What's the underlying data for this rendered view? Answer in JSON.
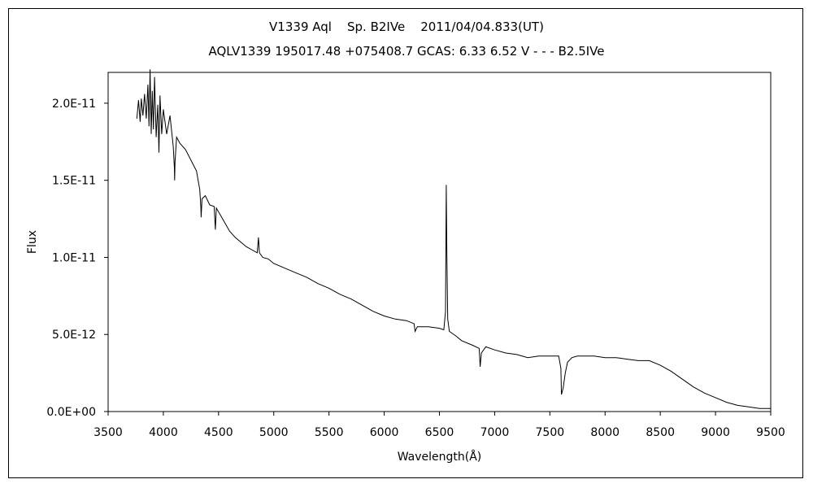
{
  "chart_data": {
    "type": "line",
    "title": "V1339 Aql    Sp. B2IVe    2011/04/04.833(UT)",
    "subtitle": "AQLV1339 195017.48 +075408.7 GCAS: 6.33 6.52 V - - - B2.5IVe",
    "xlabel": "Wavelength(Å)",
    "ylabel": "Flux",
    "xlim": [
      3500,
      9500
    ],
    "ylim": [
      0,
      2.2e-11
    ],
    "grid": false,
    "x_ticks": [
      3500,
      4000,
      4500,
      5000,
      5500,
      6000,
      6500,
      7000,
      7500,
      8000,
      8500,
      9000,
      9500
    ],
    "x_tick_labels": [
      "3500",
      "4000",
      "4500",
      "5000",
      "5500",
      "6000",
      "6500",
      "7000",
      "7500",
      "8000",
      "8500",
      "9000",
      "9500"
    ],
    "y_ticks": [
      0,
      5e-12,
      1e-11,
      1.5e-11,
      2e-11
    ],
    "y_tick_labels": [
      "0.0E+00",
      "5.0E-12",
      "1.0E-11",
      "1.5E-11",
      "2.0E-11"
    ],
    "series": [
      {
        "color": "#000000",
        "x": [
          3760,
          3775,
          3790,
          3800,
          3815,
          3830,
          3845,
          3860,
          3870,
          3880,
          3890,
          3900,
          3910,
          3920,
          3935,
          3950,
          3960,
          3970,
          3985,
          4000,
          4030,
          4060,
          4090,
          4100,
          4102,
          4106,
          4120,
          4150,
          4200,
          4250,
          4300,
          4330,
          4340,
          4342,
          4350,
          4380,
          4420,
          4460,
          4471,
          4480,
          4520,
          4560,
          4600,
          4650,
          4700,
          4750,
          4800,
          4850,
          4861,
          4870,
          4900,
          4950,
          5000,
          5100,
          5200,
          5300,
          5400,
          5500,
          5600,
          5700,
          5800,
          5900,
          6000,
          6100,
          6200,
          6270,
          6280,
          6300,
          6400,
          6500,
          6540,
          6555,
          6562,
          6568,
          6575,
          6590,
          6650,
          6700,
          6800,
          6860,
          6869,
          6880,
          6920,
          7000,
          7100,
          7200,
          7300,
          7400,
          7500,
          7580,
          7600,
          7605,
          7620,
          7640,
          7660,
          7700,
          7750,
          7800,
          7900,
          8000,
          8100,
          8200,
          8300,
          8400,
          8500,
          8600,
          8700,
          8800,
          8900,
          9000,
          9100,
          9200,
          9300,
          9400,
          9500
        ],
        "y": [
          1.9e-11,
          2.02e-11,
          1.88e-11,
          2.03e-11,
          1.92e-11,
          2.06e-11,
          1.9e-11,
          2.12e-11,
          1.85e-11,
          2.22e-11,
          1.8e-11,
          2.08e-11,
          1.83e-11,
          2.17e-11,
          1.78e-11,
          1.99e-11,
          1.68e-11,
          2.05e-11,
          1.8e-11,
          1.96e-11,
          1.8e-11,
          1.92e-11,
          1.72e-11,
          1.58e-11,
          1.5e-11,
          1.62e-11,
          1.78e-11,
          1.74e-11,
          1.7e-11,
          1.63e-11,
          1.56e-11,
          1.44e-11,
          1.32e-11,
          1.26e-11,
          1.38e-11,
          1.4e-11,
          1.34e-11,
          1.33e-11,
          1.18e-11,
          1.32e-11,
          1.27e-11,
          1.22e-11,
          1.17e-11,
          1.13e-11,
          1.1e-11,
          1.07e-11,
          1.05e-11,
          1.03e-11,
          1.13e-11,
          1.03e-11,
          1e-11,
          9.9e-12,
          9.6e-12,
          9.3e-12,
          9e-12,
          8.7e-12,
          8.3e-12,
          8e-12,
          7.6e-12,
          7.3e-12,
          6.9e-12,
          6.5e-12,
          6.2e-12,
          6e-12,
          5.9e-12,
          5.7e-12,
          5.2e-12,
          5.5e-12,
          5.5e-12,
          5.4e-12,
          5.3e-12,
          6.5e-12,
          1.47e-11,
          1e-11,
          6e-12,
          5.2e-12,
          4.9e-12,
          4.6e-12,
          4.3e-12,
          4.1e-12,
          2.9e-12,
          3.8e-12,
          4.2e-12,
          4e-12,
          3.8e-12,
          3.7e-12,
          3.5e-12,
          3.6e-12,
          3.6e-12,
          3.6e-12,
          2.8e-12,
          1.1e-12,
          1.5e-12,
          2.5e-12,
          3.2e-12,
          3.5e-12,
          3.6e-12,
          3.6e-12,
          3.6e-12,
          3.5e-12,
          3.5e-12,
          3.4e-12,
          3.3e-12,
          3.3e-12,
          3e-12,
          2.6e-12,
          2.1e-12,
          1.6e-12,
          1.2e-12,
          9e-13,
          6e-13,
          4e-13,
          3e-13,
          2e-13,
          2e-13
        ]
      }
    ]
  }
}
